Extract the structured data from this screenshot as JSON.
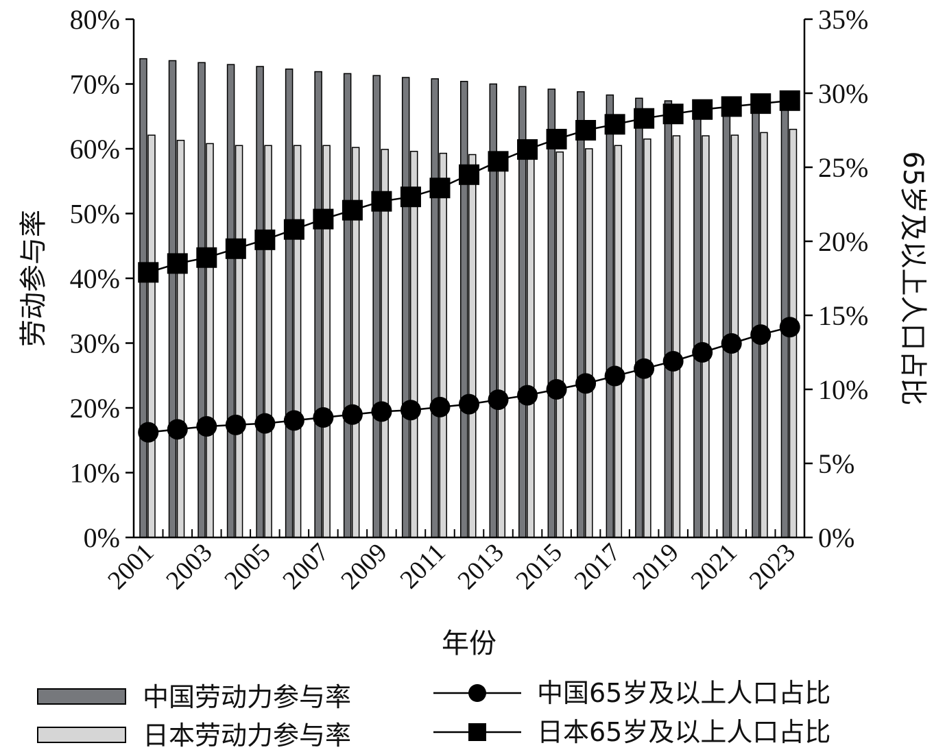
{
  "chart_data": {
    "type": "bar",
    "categories": [
      2001,
      2002,
      2003,
      2004,
      2005,
      2006,
      2007,
      2008,
      2009,
      2010,
      2011,
      2012,
      2013,
      2014,
      2015,
      2016,
      2017,
      2018,
      2019,
      2020,
      2021,
      2022,
      2023
    ],
    "x_tick_labels": [
      "2001",
      "2003",
      "2005",
      "2007",
      "2009",
      "2011",
      "2013",
      "2015",
      "2017",
      "2019",
      "2021",
      "2023"
    ],
    "xlabel": "年份",
    "ylabel_left": "劳动参与率",
    "ylabel_right": "65岁及以上人口占比",
    "ylim_left": [
      0,
      80
    ],
    "ylim_right": [
      0,
      35
    ],
    "left_ticks": [
      "0%",
      "10%",
      "20%",
      "30%",
      "40%",
      "50%",
      "60%",
      "70%",
      "80%"
    ],
    "right_ticks": [
      "0%",
      "5%",
      "10%",
      "15%",
      "20%",
      "25%",
      "30%",
      "35%"
    ],
    "grid": false,
    "legend_position": "bottom",
    "series": [
      {
        "name": "中国劳动力参与率",
        "kind": "bar",
        "axis": "left",
        "color": "#76787c",
        "values": [
          73.9,
          73.6,
          73.3,
          73.0,
          72.7,
          72.3,
          71.9,
          71.6,
          71.3,
          71.0,
          70.8,
          70.4,
          70.0,
          69.6,
          69.2,
          68.8,
          68.3,
          67.8,
          67.4,
          66.8,
          66.9,
          66.8,
          66.9
        ]
      },
      {
        "name": "日本劳动力参与率",
        "kind": "bar",
        "axis": "left",
        "color": "#d6d6d6",
        "values": [
          62.1,
          61.3,
          60.8,
          60.5,
          60.5,
          60.5,
          60.5,
          60.2,
          59.9,
          59.6,
          59.3,
          59.1,
          59.3,
          59.4,
          59.5,
          60.0,
          60.5,
          61.5,
          62.0,
          62.0,
          62.1,
          62.5,
          63.0
        ]
      },
      {
        "name": "中国65岁及以上人口占比",
        "kind": "line",
        "marker": "circle",
        "axis": "right",
        "color": "#000000",
        "values": [
          7.1,
          7.3,
          7.5,
          7.6,
          7.7,
          7.9,
          8.1,
          8.3,
          8.5,
          8.6,
          8.8,
          9.0,
          9.3,
          9.6,
          10.0,
          10.4,
          10.9,
          11.4,
          11.9,
          12.5,
          13.1,
          13.7,
          14.2
        ]
      },
      {
        "name": "日本65岁及以上人口占比",
        "kind": "line",
        "marker": "square",
        "axis": "right",
        "color": "#000000",
        "values": [
          17.9,
          18.5,
          18.9,
          19.5,
          20.1,
          20.8,
          21.5,
          22.1,
          22.7,
          23.0,
          23.6,
          24.5,
          25.4,
          26.2,
          26.9,
          27.5,
          27.9,
          28.3,
          28.6,
          28.9,
          29.1,
          29.3,
          29.5
        ]
      }
    ]
  }
}
